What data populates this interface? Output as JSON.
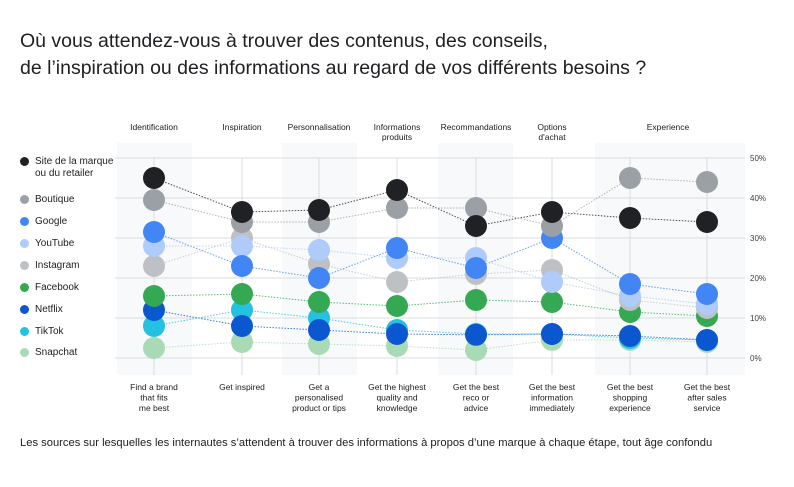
{
  "title_line1": "Où vous attendez-vous à trouver des contenus, des conseils,",
  "title_line2": "de l’inspiration ou des informations au regard de vos différents besoins ?",
  "caption": "Les sources sur lesquelles les internautes s’attendent à trouver des informations à propos d’une marque à chaque étape, tout âge confondu",
  "chart_data": {
    "type": "scatter",
    "title": "Où vous attendez-vous à trouver des contenus, des conseils, de l’inspiration ou des informations au regard de vos différents besoins ?",
    "stages": [
      "Identification",
      "Inspiration",
      "Personnalisation",
      "Informations produits",
      "Recommandations",
      "Options d'achat",
      "Experience"
    ],
    "categories": [
      "Find a brand that fits me best",
      "Get inspired",
      "Get a personalised product or tips",
      "Get the highest quality and knowledge",
      "Get the best reco or advice",
      "Get the best information immediately",
      "Get the best shopping experience",
      "Get the best after sales service"
    ],
    "yticks": [
      "0%",
      "10%",
      "20%",
      "30%",
      "40%",
      "50%"
    ],
    "ylim": [
      0,
      50
    ],
    "ylabel": "",
    "legend_position": "left",
    "grid": true,
    "series": [
      {
        "name": "Site de la marque ou du retailer",
        "color": "#202124",
        "values": [
          45,
          36.5,
          37,
          42,
          33,
          36.5,
          35,
          34
        ]
      },
      {
        "name": "Boutique",
        "color": "#9aa0a6",
        "values": [
          39.5,
          34,
          34,
          37.5,
          37.5,
          33,
          45,
          44
        ]
      },
      {
        "name": "Google",
        "color": "#4285f4",
        "values": [
          31.5,
          23,
          20,
          27.5,
          22.5,
          30,
          18.5,
          16
        ]
      },
      {
        "name": "YouTube",
        "color": "#aecbfa",
        "values": [
          28,
          28,
          27,
          25,
          25,
          19,
          15.5,
          13.5
        ]
      },
      {
        "name": "Instagram",
        "color": "#bdc1c6",
        "values": [
          23,
          30,
          23.5,
          19,
          21,
          22,
          14.5,
          12.5
        ]
      },
      {
        "name": "Facebook",
        "color": "#34a853",
        "values": [
          15.5,
          16,
          14,
          13,
          14.5,
          14,
          11.5,
          10.5
        ]
      },
      {
        "name": "Netflix",
        "color": "#0b57d0",
        "values": [
          12,
          8,
          7,
          6,
          5.8,
          6,
          5.5,
          4.5
        ]
      },
      {
        "name": "TikTok",
        "color": "#24c1e0",
        "values": [
          8,
          12,
          10,
          7,
          6,
          6,
          5,
          4.5
        ]
      },
      {
        "name": "Snapchat",
        "color": "#a8dab5",
        "values": [
          2.5,
          4,
          3.5,
          3,
          2,
          4.5,
          4.5,
          4
        ]
      }
    ]
  }
}
